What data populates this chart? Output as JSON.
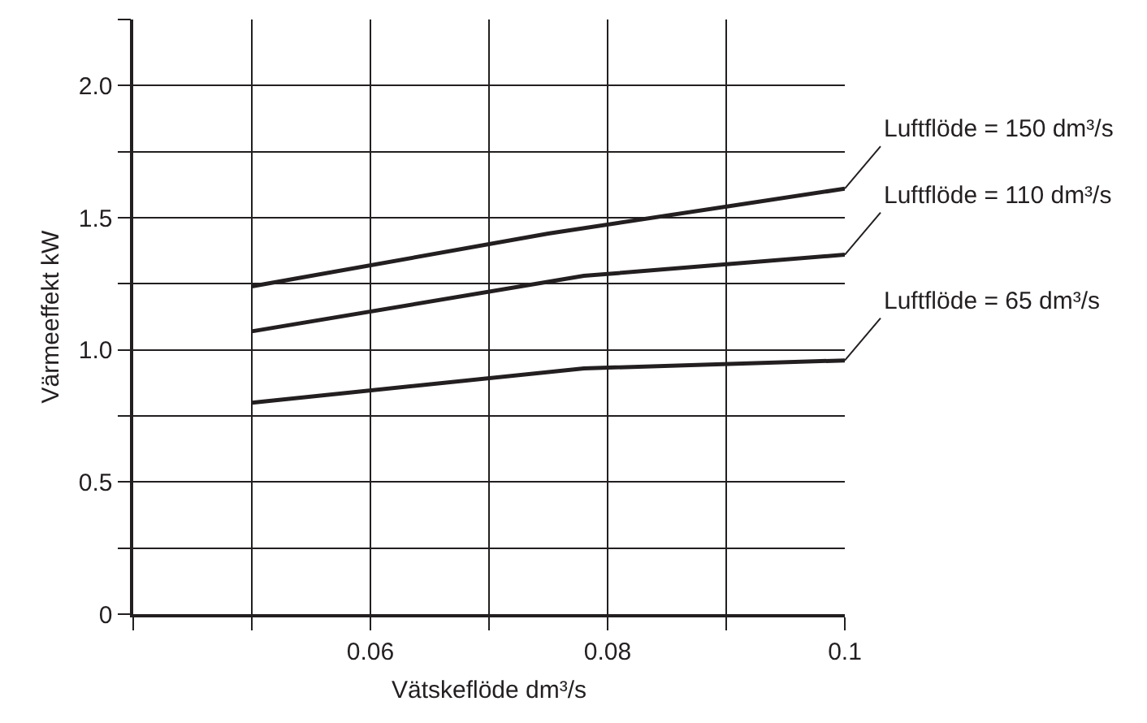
{
  "chart_data": {
    "type": "line",
    "xlabel": "Vätskeflöde dm³/s",
    "ylabel": "Värmeeffekt kW",
    "xlim": [
      0.04,
      0.1
    ],
    "xticks": [
      {
        "value": 0.04,
        "label": null
      },
      {
        "value": 0.05,
        "label": null
      },
      0.06,
      {
        "value": 0.07,
        "label": null
      },
      0.08,
      {
        "value": 0.09,
        "label": null
      },
      0.1
    ],
    "ylim": [
      0,
      2.25
    ],
    "yticks": [
      0,
      {
        "value": 0.25,
        "label": null
      },
      0.5,
      {
        "value": 0.75,
        "label": null
      },
      {
        "value": 1,
        "label": "1.0"
      },
      {
        "value": 1.25,
        "label": null
      },
      1.5,
      {
        "value": 1.75,
        "label": null
      },
      {
        "value": 2,
        "label": "2.0"
      },
      {
        "value": 2.25,
        "label": null
      }
    ],
    "grid": true,
    "legend": false,
    "marker": "none",
    "line_style": "solid",
    "series": [
      {
        "name": "Luftflöde = 150 dm³/s",
        "color": "#231f20",
        "x": [
          0.05,
          0.075,
          0.1
        ],
        "values": [
          1.24,
          1.44,
          1.61
        ]
      },
      {
        "name": "Luftflöde = 110 dm³/s",
        "color": "#231f20",
        "x": [
          0.05,
          0.078,
          0.1
        ],
        "values": [
          1.07,
          1.28,
          1.36
        ]
      },
      {
        "name": "Luftflöde = 65 dm³/s",
        "color": "#231f20",
        "x": [
          0.05,
          0.078,
          0.1
        ],
        "values": [
          0.8,
          0.93,
          0.96
        ]
      }
    ]
  }
}
